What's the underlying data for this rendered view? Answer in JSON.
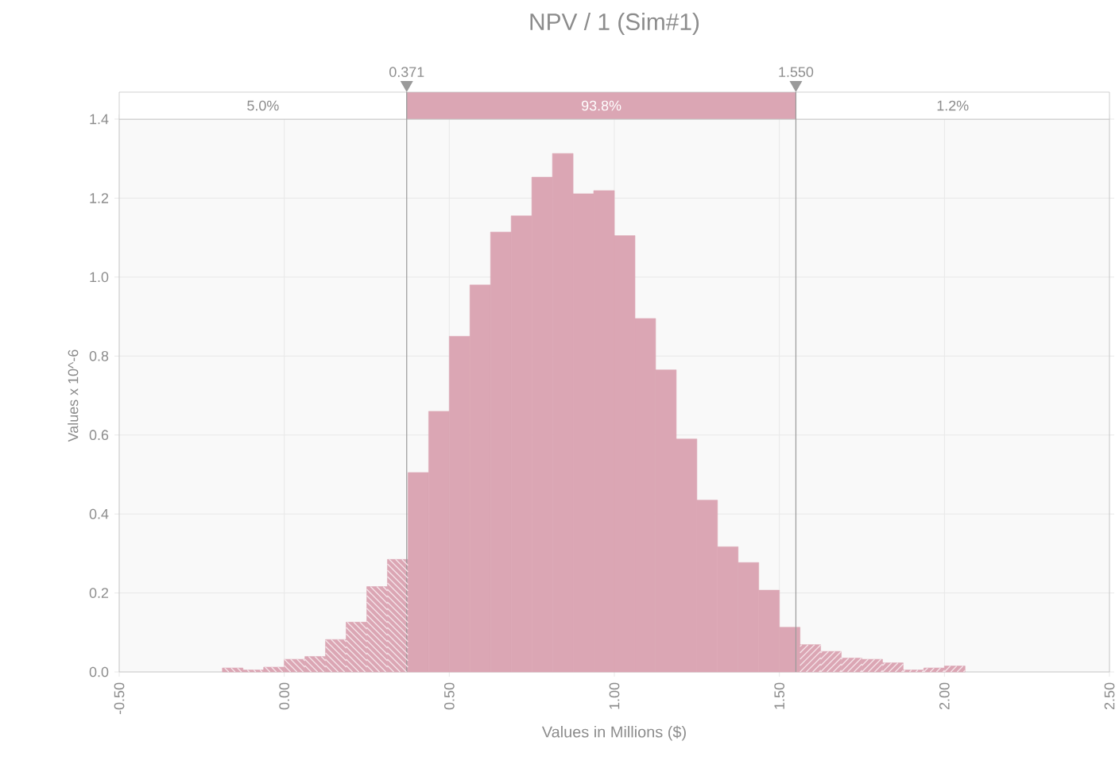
{
  "chart_data": {
    "type": "histogram",
    "title": "NPV / 1 (Sim#1)",
    "xlabel": "Values in Millions ($)",
    "ylabel": "Values x 10^-6",
    "bins": [
      -0.1875,
      -0.125,
      -0.0625,
      0,
      0.0625,
      0.125,
      0.1875,
      0.25,
      0.3125,
      0.375,
      0.4375,
      0.5,
      0.5625,
      0.625,
      0.6875,
      0.75,
      0.8125,
      0.875,
      0.9375,
      1,
      1.0625,
      1.125,
      1.1875,
      1.25,
      1.3125,
      1.375,
      1.4375,
      1.5,
      1.5625,
      1.625,
      1.6875,
      1.75,
      1.8125,
      1.875,
      1.9375,
      2,
      2.0625
    ],
    "series": [
      {
        "color": "#dba6b4",
        "values": [
          0.01,
          0.005,
          0.012,
          0.032,
          0.039,
          0.082,
          0.126,
          0.216,
          0.285,
          0.505,
          0.66,
          0.85,
          0.98,
          1.114,
          1.155,
          1.253,
          1.313,
          1.211,
          1.219,
          1.105,
          0.895,
          0.765,
          0.59,
          0.435,
          0.317,
          0.277,
          0.207,
          0.113,
          0.069,
          0.052,
          0.035,
          0.032,
          0.023,
          0.005,
          0.01,
          0.015
        ]
      }
    ],
    "xlim": [
      -0.5,
      2.5
    ],
    "xticks": [
      {
        "value": -0.5,
        "label": "-0.50"
      },
      {
        "value": 0,
        "label": "0.00"
      },
      {
        "value": 0.5,
        "label": "0.50"
      },
      {
        "value": 1,
        "label": "1.00"
      },
      {
        "value": 1.5,
        "label": "1.50"
      },
      {
        "value": 2,
        "label": "2.00"
      },
      {
        "value": 2.5,
        "label": "2.50"
      }
    ],
    "ylim": [
      0,
      1.4
    ],
    "yticks": [
      {
        "value": 0,
        "label": "0.0"
      },
      {
        "value": 0.2,
        "label": "0.2"
      },
      {
        "value": 0.4,
        "label": "0.4"
      },
      {
        "value": 0.6,
        "label": "0.6"
      },
      {
        "value": 0.8,
        "label": "0.8"
      },
      {
        "value": 1,
        "label": "1.0"
      },
      {
        "value": 1.2,
        "label": "1.2"
      },
      {
        "value": 1.4,
        "label": "1.4"
      }
    ],
    "grid": true,
    "ref_lines": [
      {
        "axis": "x",
        "value": 0.371,
        "label": "0.371"
      },
      {
        "axis": "x",
        "value": 1.55,
        "label": "1.550"
      }
    ],
    "annotations": [
      "5.0%",
      "93.8%",
      "1.2%"
    ]
  }
}
